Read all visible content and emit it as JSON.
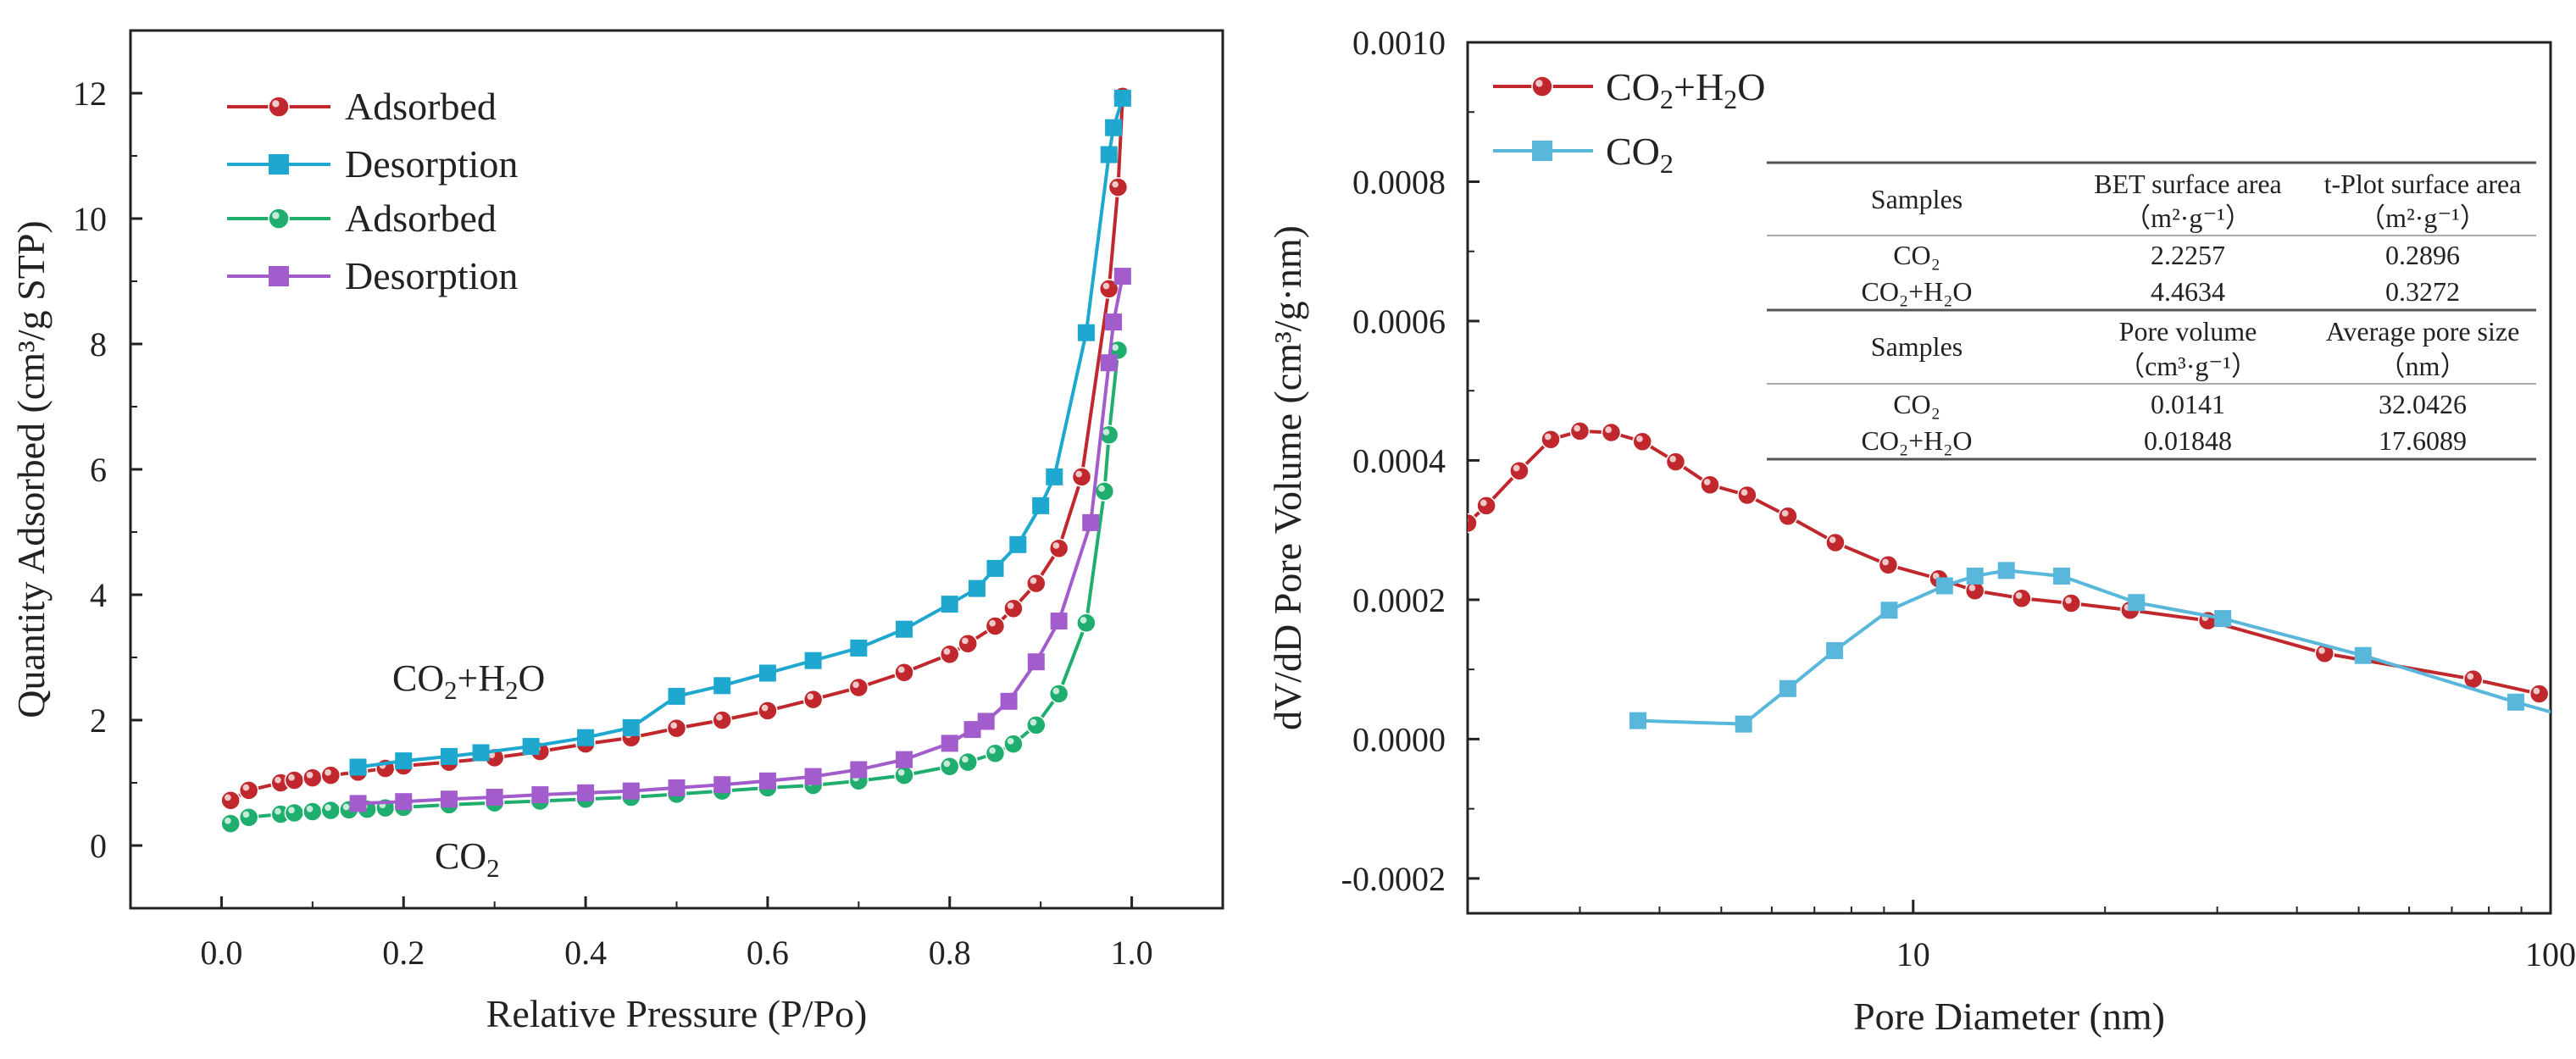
{
  "colors": {
    "red": "#c0282d",
    "cyan": "#1ea7cf",
    "green": "#1fae6e",
    "purple": "#a25ccc",
    "lightblue": "#5ab7dc"
  },
  "chart_data": [
    {
      "type": "line",
      "xlabel": "Relative Pressure (P/Po)",
      "ylabel": "Quantity Adsorbed (cm³/g STP)",
      "xlim": [
        -0.1,
        1.1
      ],
      "ylim": [
        -1,
        13
      ],
      "xticks": [
        "0.0",
        "0.2",
        "0.4",
        "0.6",
        "0.8",
        "1.0"
      ],
      "yticks": [
        "0",
        "2",
        "4",
        "6",
        "8",
        "10",
        "12"
      ],
      "legend_position": "top-left",
      "annotations": [
        {
          "text": "CO2+H2O",
          "base": "CO",
          "sub1": "2",
          "mid": "+H",
          "sub2": "2",
          "end": "O"
        },
        {
          "text": "CO2",
          "base": "CO",
          "sub1": "2"
        }
      ],
      "series": [
        {
          "name": "Adsorbed",
          "marker": "circle",
          "color": "red",
          "x": [
            0.01,
            0.03,
            0.065,
            0.08,
            0.1,
            0.12,
            0.15,
            0.18,
            0.2,
            0.25,
            0.3,
            0.35,
            0.4,
            0.45,
            0.5,
            0.55,
            0.6,
            0.65,
            0.7,
            0.75,
            0.8,
            0.82,
            0.85,
            0.87,
            0.895,
            0.92,
            0.945,
            0.975,
            0.985,
            0.99
          ],
          "y": [
            0.72,
            0.88,
            1.0,
            1.04,
            1.08,
            1.12,
            1.17,
            1.23,
            1.27,
            1.33,
            1.4,
            1.5,
            1.62,
            1.72,
            1.87,
            2.0,
            2.15,
            2.33,
            2.52,
            2.76,
            3.05,
            3.22,
            3.5,
            3.78,
            4.18,
            4.74,
            5.88,
            8.88,
            10.5,
            11.95
          ]
        },
        {
          "name": "Desorption",
          "marker": "square",
          "color": "cyan",
          "x": [
            0.15,
            0.2,
            0.25,
            0.285,
            0.34,
            0.4,
            0.45,
            0.5,
            0.55,
            0.6,
            0.65,
            0.7,
            0.75,
            0.8,
            0.83,
            0.85,
            0.875,
            0.9,
            0.915,
            0.95,
            0.975,
            0.98,
            0.99
          ],
          "y": [
            1.25,
            1.35,
            1.42,
            1.48,
            1.58,
            1.72,
            1.88,
            2.38,
            2.55,
            2.75,
            2.95,
            3.15,
            3.45,
            3.85,
            4.1,
            4.42,
            4.8,
            5.42,
            5.88,
            8.18,
            11.02,
            11.45,
            11.92
          ]
        },
        {
          "name": "Adsorbed",
          "marker": "circle",
          "color": "green",
          "x": [
            0.01,
            0.03,
            0.065,
            0.08,
            0.1,
            0.12,
            0.14,
            0.16,
            0.18,
            0.2,
            0.25,
            0.3,
            0.35,
            0.4,
            0.45,
            0.5,
            0.55,
            0.6,
            0.65,
            0.7,
            0.75,
            0.8,
            0.82,
            0.85,
            0.87,
            0.895,
            0.92,
            0.95,
            0.97,
            0.975,
            0.985
          ],
          "y": [
            0.35,
            0.45,
            0.5,
            0.52,
            0.54,
            0.56,
            0.57,
            0.58,
            0.6,
            0.61,
            0.65,
            0.68,
            0.71,
            0.74,
            0.77,
            0.82,
            0.87,
            0.92,
            0.96,
            1.03,
            1.12,
            1.26,
            1.33,
            1.47,
            1.62,
            1.92,
            2.42,
            3.55,
            5.65,
            6.55,
            7.9
          ]
        },
        {
          "name": "Desorption",
          "marker": "square",
          "color": "purple",
          "x": [
            0.15,
            0.2,
            0.25,
            0.3,
            0.35,
            0.4,
            0.45,
            0.5,
            0.55,
            0.6,
            0.65,
            0.7,
            0.75,
            0.8,
            0.825,
            0.84,
            0.865,
            0.895,
            0.92,
            0.955,
            0.975,
            0.98,
            0.99
          ],
          "y": [
            0.67,
            0.7,
            0.74,
            0.77,
            0.81,
            0.84,
            0.87,
            0.92,
            0.97,
            1.03,
            1.1,
            1.21,
            1.37,
            1.63,
            1.85,
            1.98,
            2.3,
            2.93,
            3.58,
            5.15,
            7.7,
            8.35,
            9.08
          ]
        }
      ]
    },
    {
      "type": "line",
      "xlabel": "Pore Diameter (nm)",
      "ylabel": "dV/dD Pore Volume (cm³/g·nm)",
      "xscale": "log",
      "xlim": [
        2,
        100
      ],
      "ylim": [
        -0.00025,
        0.001
      ],
      "xticks": [
        "10",
        "100"
      ],
      "yticks": [
        "-0.0002",
        "0.0000",
        "0.0002",
        "0.0004",
        "0.0006",
        "0.0008",
        "0.0010"
      ],
      "legend_position": "top-left",
      "series": [
        {
          "name": "CO2+H2O",
          "marker": "circle",
          "color": "red",
          "x": [
            2.0,
            2.14,
            2.41,
            2.7,
            3.0,
            3.36,
            3.76,
            4.24,
            4.8,
            5.49,
            6.36,
            7.55,
            9.14,
            10.97,
            12.5,
            14.8,
            17.7,
            21.9,
            29.0,
            44.2,
            75.6,
            96
          ],
          "y": [
            0.00031,
            0.000335,
            0.000385,
            0.00043,
            0.000442,
            0.00044,
            0.000427,
            0.000398,
            0.000365,
            0.00035,
            0.00032,
            0.000282,
            0.00025,
            0.00023,
            0.000213,
            0.000202,
            0.000195,
            0.000185,
            0.00017,
            0.000123,
            8.6e-05,
            6.5e-05
          ]
        },
        {
          "name": "CO2",
          "marker": "square",
          "color": "lightblue",
          "x": [
            3.7,
            5.42,
            6.36,
            7.53,
            9.17,
            11.2,
            12.5,
            14.0,
            17.1,
            22.4,
            30.6,
            50.8,
            88.2
          ],
          "y": [
            2.65e-05,
            2.16e-05,
            7.25e-05,
            0.000127,
            0.000185,
            0.00022,
            0.000234,
            0.000242,
            0.000234,
            0.000196,
            0.000173,
            0.00012,
            5.3e-05
          ],
          "line_end": [
            100,
            3.9e-05
          ]
        }
      ],
      "table": {
        "header1": [
          "Samples",
          "BET surface area",
          "t-Plot surface area"
        ],
        "units1": [
          "",
          "（m²·g⁻¹）",
          "（m²·g⁻¹）"
        ],
        "rows1": [
          [
            "CO₂",
            "2.2257",
            "0.2896"
          ],
          [
            "CO₂+H₂O",
            "4.4634",
            "0.3272"
          ]
        ],
        "header2": [
          "Samples",
          "Pore volume",
          "Average pore size"
        ],
        "units2": [
          "",
          "（cm³·g⁻¹）",
          "（nm）"
        ],
        "rows2": [
          [
            "CO₂",
            "0.0141",
            "32.0426"
          ],
          [
            "CO₂+H₂O",
            "0.01848",
            "17.6089"
          ]
        ]
      }
    }
  ]
}
